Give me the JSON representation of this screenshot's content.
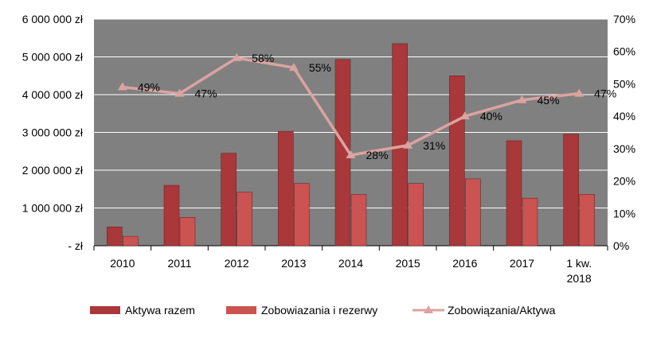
{
  "chart_data": {
    "type": "bar",
    "categories": [
      "2010",
      "2011",
      "2012",
      "2013",
      "2014",
      "2015",
      "2016",
      "2017",
      "1 kw.|2018"
    ],
    "series": [
      {
        "name": "Aktywa razem",
        "type": "bar",
        "axis": "left",
        "color": "#a9383a",
        "values": [
          500000,
          1600000,
          2450000,
          3030000,
          4930000,
          5350000,
          4500000,
          2780000,
          2950000
        ]
      },
      {
        "name": "Zobowiazania i rezerwy",
        "type": "bar",
        "axis": "left",
        "color": "#cb5351",
        "values": [
          250000,
          750000,
          1420000,
          1650000,
          1360000,
          1650000,
          1770000,
          1260000,
          1360000
        ]
      },
      {
        "name": "Zobowiązania/Aktywa",
        "type": "line",
        "axis": "right",
        "color": "#dba3a1",
        "values": [
          49,
          47,
          58,
          55,
          28,
          31,
          40,
          45,
          47
        ],
        "labels": [
          "49%",
          "47%",
          "58%",
          "55%",
          "28%",
          "31%",
          "40%",
          "45%",
          "47%"
        ]
      }
    ],
    "ylim_left": [
      0,
      6000000
    ],
    "ylim_right": [
      0,
      70
    ],
    "y_ticks_left": [
      {
        "value": 6000000,
        "label": "6 000 000 zł"
      },
      {
        "value": 5000000,
        "label": "5 000 000 zł"
      },
      {
        "value": 4000000,
        "label": "4 000 000 zł"
      },
      {
        "value": 3000000,
        "label": "3 000 000 zł"
      },
      {
        "value": 2000000,
        "label": "2 000 000 zł"
      },
      {
        "value": 1000000,
        "label": "1 000 000 zł"
      },
      {
        "value": 0,
        "label": "-   zł"
      }
    ],
    "y_ticks_right": [
      {
        "value": 70,
        "label": "70%"
      },
      {
        "value": 60,
        "label": "60%"
      },
      {
        "value": 50,
        "label": "50%"
      },
      {
        "value": 40,
        "label": "40%"
      },
      {
        "value": 30,
        "label": "30%"
      },
      {
        "value": 20,
        "label": "20%"
      },
      {
        "value": 10,
        "label": "10%"
      },
      {
        "value": 0,
        "label": "0%"
      }
    ],
    "grid": true,
    "legend_position": "bottom",
    "plot_background": "#808080"
  }
}
